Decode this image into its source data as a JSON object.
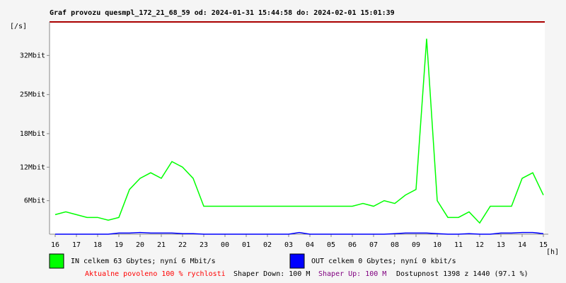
{
  "chart_data": {
    "type": "line",
    "title": "Graf provozu quesmpl_172_21_68_59 od: 2024-01-31 15:44:58 do: 2024-02-01 15:01:39",
    "y_unit": "[/s]",
    "x_unit": "[h]",
    "categories": [
      "16",
      null,
      "17",
      null,
      "18",
      null,
      "19",
      null,
      "20",
      null,
      "21",
      null,
      "22",
      null,
      "23",
      null,
      "00",
      null,
      "01",
      null,
      "02",
      null,
      "03",
      null,
      "04",
      null,
      "05",
      null,
      "06",
      null,
      "07",
      null,
      "08",
      null,
      "09",
      null,
      "10",
      null,
      "11",
      null,
      "12",
      null,
      "13",
      null,
      "14",
      null,
      "15"
    ],
    "series": [
      {
        "name": "IN celkem 63 Gbytes; nyní 6 Mbit/s",
        "color": "#00ff00",
        "values": [
          3.5,
          4,
          3.5,
          3,
          3,
          2.5,
          3,
          8,
          10,
          11,
          10,
          13,
          12,
          10,
          5,
          5,
          5,
          5,
          5,
          5,
          5,
          5,
          5,
          5,
          5,
          5,
          5,
          5,
          5,
          5.5,
          5,
          6,
          5.5,
          7,
          8,
          35,
          6,
          3,
          3,
          4,
          2,
          5,
          5,
          5,
          10,
          11,
          7
        ]
      },
      {
        "name": "OUT celkem 0 Gbytes; nyní 0 kbit/s",
        "color": "#0000ff",
        "values": [
          0,
          0,
          0,
          0,
          0,
          0,
          0.2,
          0.2,
          0.3,
          0.2,
          0.2,
          0.2,
          0.1,
          0.1,
          0,
          0,
          0,
          0,
          0,
          0,
          0,
          0,
          0,
          0.3,
          0,
          0,
          0,
          0,
          0,
          0,
          0,
          0,
          0.1,
          0.2,
          0.2,
          0.2,
          0.1,
          0,
          0,
          0.1,
          0,
          0,
          0.2,
          0.2,
          0.3,
          0.3,
          0.1
        ]
      }
    ],
    "ylim": [
      0,
      38
    ],
    "yticks": [
      {
        "value": 6,
        "label": "6Mbit"
      },
      {
        "value": 12,
        "label": "12Mbit"
      },
      {
        "value": 18,
        "label": "18Mbit"
      },
      {
        "value": 25,
        "label": "25Mbit"
      },
      {
        "value": 32,
        "label": "32Mbit"
      }
    ],
    "grid": false,
    "footer": [
      {
        "text": "Aktualne povoleno 100 % rychlosti",
        "color": "#ff0000"
      },
      {
        "text": "Shaper Down: 100 M",
        "color": "#000000"
      },
      {
        "text": "Shaper Up: 100 M",
        "color": "#800080"
      },
      {
        "text": "Dostupnost 1398 z 1440 (97.1 %)",
        "color": "#000000"
      }
    ]
  }
}
